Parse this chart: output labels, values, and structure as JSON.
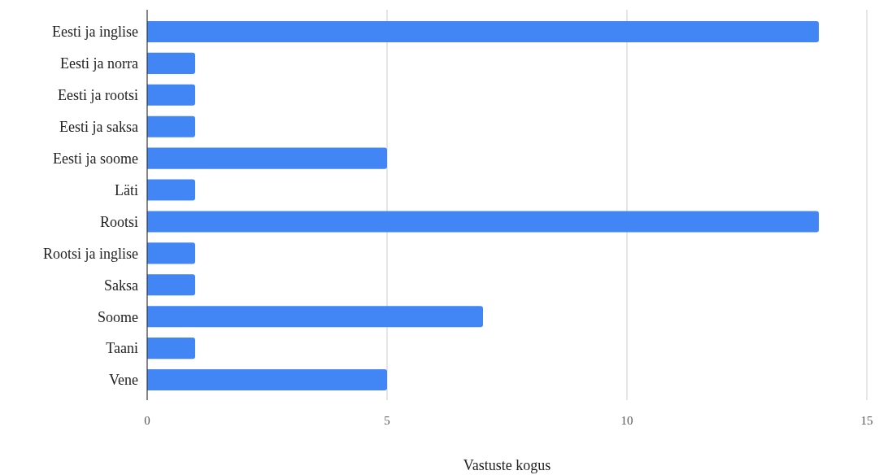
{
  "chart_data": {
    "type": "bar",
    "orientation": "horizontal",
    "xlabel": "Vastuste kogus",
    "categories": [
      "Eesti ja inglise",
      "Eesti ja norra",
      "Eesti ja rootsi",
      "Eesti ja saksa",
      "Eesti ja soome",
      "Läti",
      "Rootsi",
      "Rootsi ja inglise",
      "Saksa",
      "Soome",
      "Taani",
      "Vene"
    ],
    "values": [
      14,
      1,
      1,
      1,
      5,
      1,
      14,
      1,
      1,
      7,
      1,
      5
    ],
    "color": "#4285f4",
    "xlim": [
      0,
      15
    ],
    "xticks": [
      0,
      5,
      10,
      15
    ],
    "grid": "x"
  }
}
